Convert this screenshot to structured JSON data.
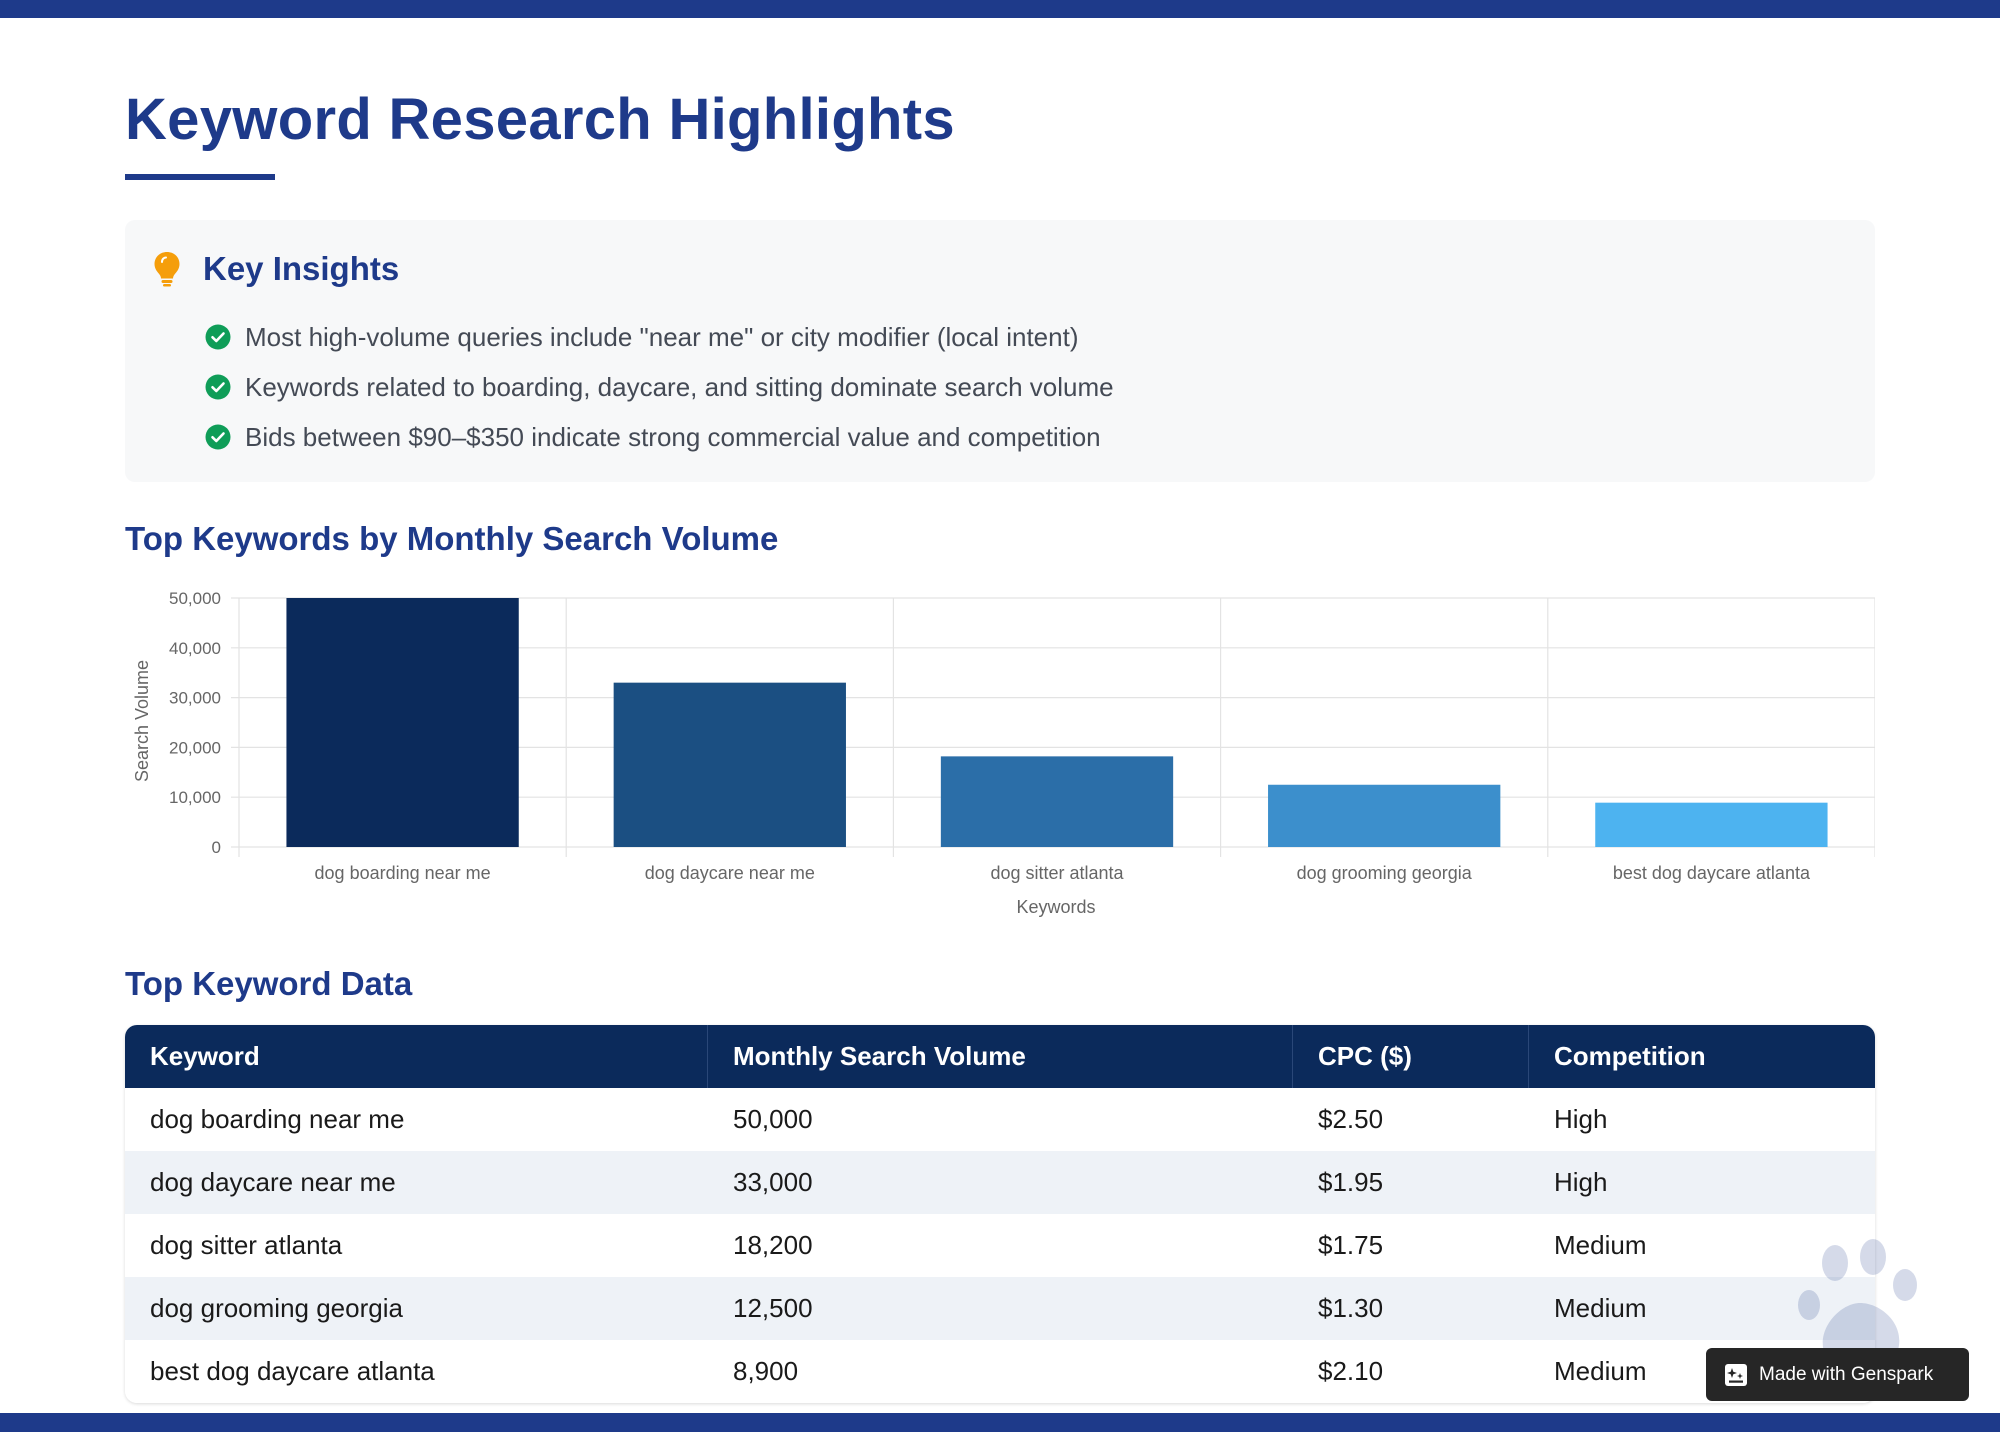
{
  "page": {
    "title": "Keyword Research Highlights"
  },
  "insights": {
    "title": "Key Insights",
    "items": [
      "Most high-volume queries include \"near me\" or city modifier (local intent)",
      "Keywords related to boarding, daycare, and sitting dominate search volume",
      "Bids between $90–$350 indicate strong commercial value and competition"
    ]
  },
  "chart_section": {
    "title": "Top Keywords by Monthly Search Volume"
  },
  "chart_data": {
    "type": "bar",
    "title": "",
    "xlabel": "Keywords",
    "ylabel": "Search Volume",
    "categories": [
      "dog boarding near me",
      "dog daycare near me",
      "dog sitter atlanta",
      "dog grooming georgia",
      "best dog daycare atlanta"
    ],
    "values": [
      50000,
      33000,
      18200,
      12500,
      8900
    ],
    "ylim": [
      0,
      50000
    ],
    "yticks": [
      "0",
      "10,000",
      "20,000",
      "30,000",
      "40,000",
      "50,000"
    ],
    "colors": [
      "#0b2a5b",
      "#1b4f82",
      "#2b6ea8",
      "#3c8fcc",
      "#4db3f0"
    ],
    "grid": true,
    "legend": "none"
  },
  "table_section": {
    "title": "Top Keyword Data"
  },
  "table": {
    "headers": [
      "Keyword",
      "Monthly Search Volume",
      "CPC ($)",
      "Competition"
    ],
    "rows": [
      [
        "dog boarding near me",
        "50,000",
        "$2.50",
        "High"
      ],
      [
        "dog daycare near me",
        "33,000",
        "$1.95",
        "High"
      ],
      [
        "dog sitter atlanta",
        "18,200",
        "$1.75",
        "Medium"
      ],
      [
        "dog grooming georgia",
        "12,500",
        "$1.30",
        "Medium"
      ],
      [
        "best dog daycare atlanta",
        "8,900",
        "$2.10",
        "Medium"
      ]
    ]
  },
  "badge": {
    "label": "Made with Genspark"
  },
  "icons": {
    "insights": "lightbulb-icon",
    "bullet": "check-circle-icon",
    "decor": "paw-icon",
    "badge": "genspark-icon"
  },
  "colors": {
    "brand": "#1e3a8a",
    "header_bg": "#0b2a5b",
    "check": "#0f9d58",
    "bulb": "#f59e0b"
  }
}
